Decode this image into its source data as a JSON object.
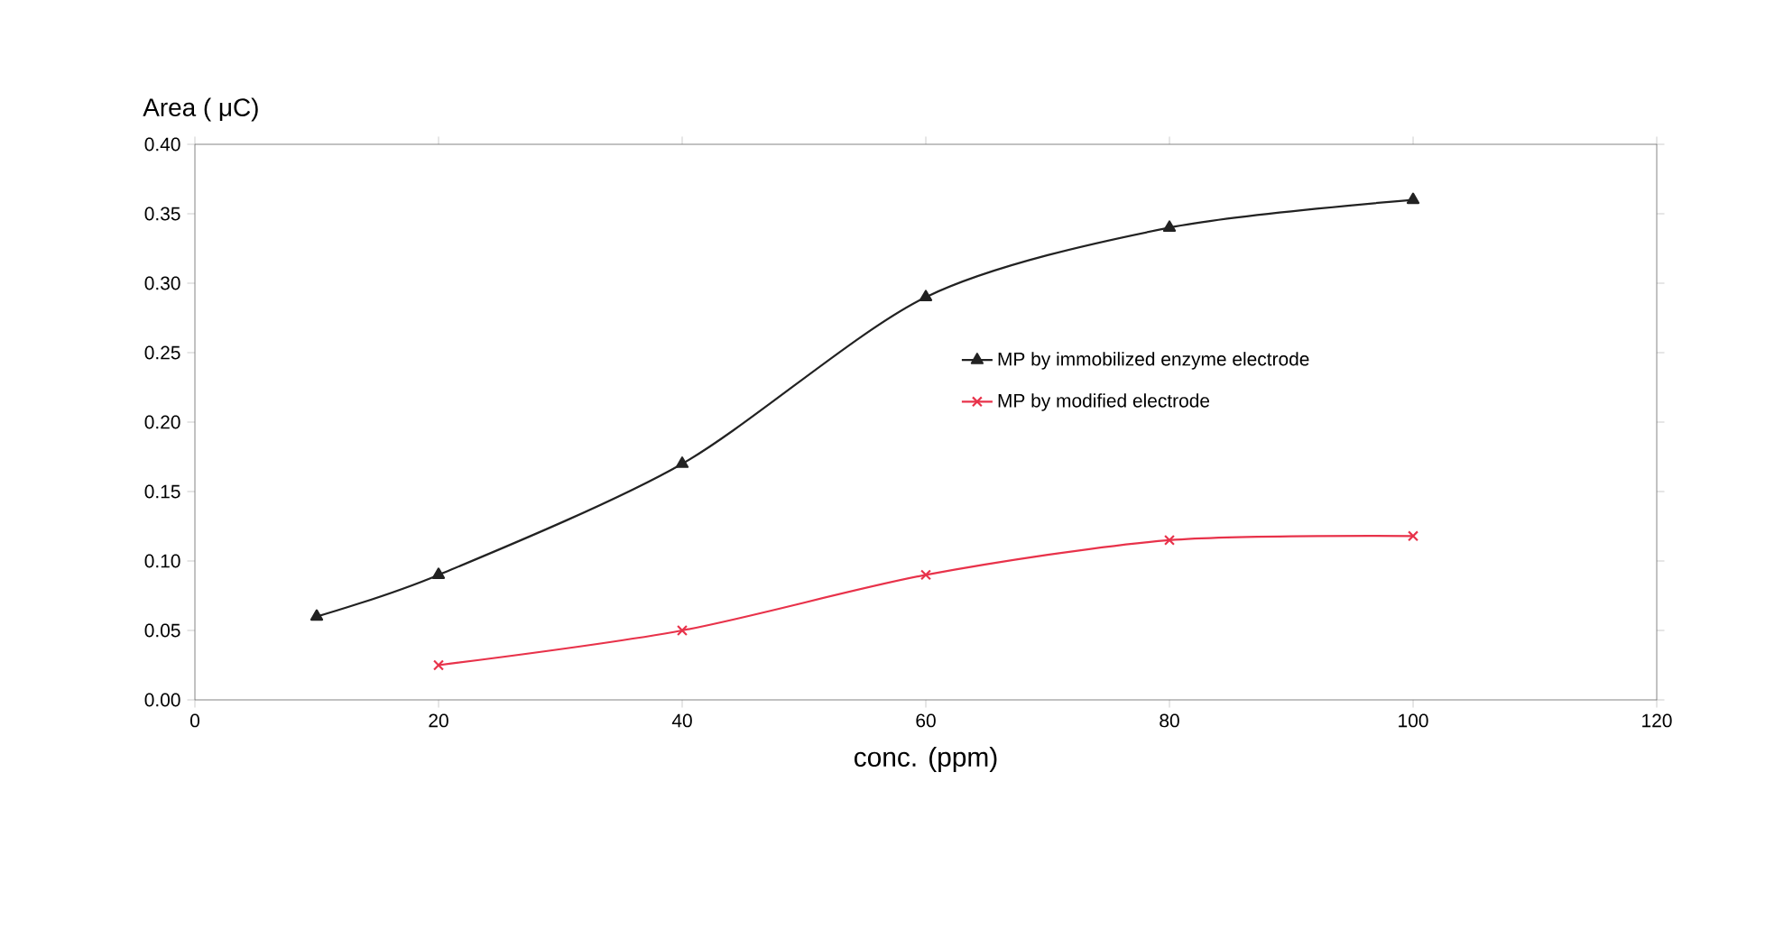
{
  "chart_data": {
    "type": "line",
    "xlabel": "conc. (ppm)",
    "ylabel": "Area ( μC)",
    "xlim": [
      0,
      120
    ],
    "xticks": [
      0,
      20,
      40,
      60,
      80,
      100,
      120
    ],
    "ylim": [
      0,
      0.4
    ],
    "yticks": [
      {
        "value": 0,
        "label": "0.00"
      },
      {
        "value": 0.05,
        "label": "0.05"
      },
      {
        "value": 0.1,
        "label": "0.10"
      },
      {
        "value": 0.15,
        "label": "0.15"
      },
      {
        "value": 0.2,
        "label": "0.20"
      },
      {
        "value": 0.25,
        "label": "0.25"
      },
      {
        "value": 0.3,
        "label": "0.30"
      },
      {
        "value": 0.35,
        "label": "0.35"
      },
      {
        "value": 0.4,
        "label": "0.40"
      }
    ],
    "grid": false,
    "legend": "right",
    "line_style": "solid",
    "series": [
      {
        "name": "MP by immobilized enzyme electrode",
        "color": "#222222",
        "marker": "triangle",
        "x": [
          10,
          20,
          40,
          60,
          80,
          100
        ],
        "values": [
          0.06,
          0.09,
          0.17,
          0.29,
          0.34,
          0.36
        ]
      },
      {
        "name": "MP by modified electrode",
        "color": "#e8324a",
        "marker": "cross",
        "x": [
          20,
          40,
          60,
          80,
          100
        ],
        "values": [
          0.025,
          0.05,
          0.09,
          0.115,
          0.118
        ]
      }
    ]
  }
}
